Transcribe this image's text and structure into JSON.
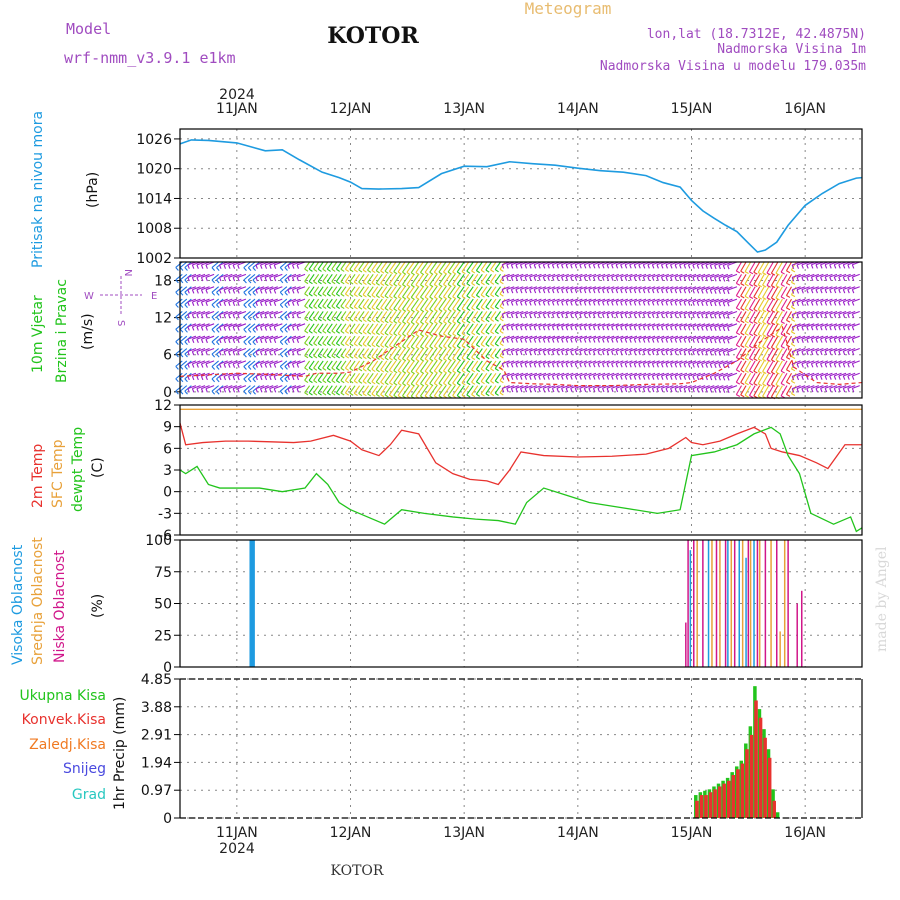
{
  "header": {
    "model_label": "Model",
    "model_name": "wrf-nmm_v3.9.1  e1km",
    "city": "KOTOR",
    "meteogram_label": "Meteogram",
    "lonlat": "lon,lat (18.7312E, 42.4875N)",
    "altitude": "Nadmorska Visina 1m",
    "model_altitude": "Nadmorska Visina u modelu 179.035m",
    "footer_city": "KOTOR",
    "credit": "made by Angel"
  },
  "colors": {
    "pressure": "#1e9be0",
    "temp2m": "#e8322e",
    "sfc_temp": "#e8a13a",
    "dewpoint": "#22c41c",
    "high_cloud": "#1e9be0",
    "mid_cloud": "#e8a13a",
    "low_cloud": "#d0168a",
    "total_precip": "#22c41c",
    "conv_precip": "#e8322e",
    "frozen_precip": "#f07a22",
    "snow": "#4a4adf",
    "graupel": "#28c8c0",
    "wind_purple": "#9a1ec8",
    "grid": "#888888"
  },
  "time_axis": {
    "year": "2024",
    "days": [
      "11JAN",
      "12JAN",
      "13JAN",
      "14JAN",
      "15JAN",
      "16JAN"
    ],
    "start_day": 10.5,
    "end_day": 16.5
  },
  "wind_legend": {
    "n": "N",
    "s": "S",
    "e": "E",
    "w": "W"
  },
  "chart_data": [
    {
      "type": "line",
      "panel": "pressure",
      "ylabel_left": "Pritisak na nivou mora",
      "ylabel_unit": "(hPa)",
      "ylim": [
        1002,
        1028
      ],
      "yticks": [
        "1002",
        "1008",
        "1014",
        "1020",
        "1026"
      ],
      "series": [
        {
          "name": "Pritisak na nivou mora",
          "x": [
            10.5,
            10.6,
            10.75,
            11.0,
            11.25,
            11.4,
            11.55,
            11.75,
            11.9,
            12.0,
            12.1,
            12.25,
            12.45,
            12.6,
            12.8,
            13.0,
            13.2,
            13.4,
            13.6,
            13.8,
            14.0,
            14.2,
            14.4,
            14.6,
            14.75,
            14.9,
            15.0,
            15.1,
            15.2,
            15.3,
            15.4,
            15.5,
            15.58,
            15.65,
            15.75,
            15.85,
            16.0,
            16.15,
            16.3,
            16.45,
            16.5
          ],
          "values": [
            1025.0,
            1025.8,
            1025.7,
            1025.2,
            1023.6,
            1023.8,
            1021.8,
            1019.3,
            1018.2,
            1017.3,
            1016.0,
            1015.9,
            1016.0,
            1016.2,
            1019.0,
            1020.5,
            1020.4,
            1021.4,
            1021.0,
            1020.7,
            1020.1,
            1019.6,
            1019.3,
            1018.6,
            1017.2,
            1016.3,
            1013.6,
            1011.5,
            1010.0,
            1008.6,
            1007.3,
            1005.0,
            1003.2,
            1003.6,
            1005.2,
            1008.6,
            1012.6,
            1015.0,
            1017.0,
            1018.1,
            1018.2
          ]
        }
      ]
    },
    {
      "type": "wind",
      "panel": "wind",
      "ylabel_left": "10m Vjetar",
      "ylabel_left2": "Brzina i Pravac",
      "ylabel_unit": "(m/s)",
      "ylim": [
        -1,
        21
      ],
      "yticks": [
        "0",
        "6",
        "12",
        "18"
      ],
      "barb_levels": [
        1,
        3,
        5,
        7,
        9,
        11,
        13,
        15,
        17,
        19,
        21
      ],
      "series": [
        {
          "name": "speed",
          "x": [
            10.5,
            10.8,
            11.0,
            11.3,
            11.6,
            11.7,
            11.9,
            12.0,
            12.2,
            12.4,
            12.6,
            12.8,
            13.0,
            13.2,
            13.35,
            13.4,
            13.6,
            13.8,
            14.0,
            14.3,
            14.6,
            14.9,
            15.0,
            15.2,
            15.4,
            15.6,
            15.8,
            15.9,
            16.1,
            16.3,
            16.5
          ],
          "values": [
            2.5,
            2.8,
            3.0,
            2.8,
            2.5,
            3.0,
            3.0,
            3.2,
            5.0,
            7.5,
            10.0,
            9.0,
            8.5,
            5.0,
            3.5,
            1.5,
            1.3,
            1.2,
            1.0,
            1.0,
            1.2,
            1.3,
            1.5,
            3.0,
            5.0,
            8.0,
            10.5,
            4.0,
            1.5,
            1.2,
            1.5
          ]
        }
      ]
    },
    {
      "type": "line",
      "panel": "temperature",
      "ylabel_left": "2m Temp",
      "ylabel_left2": "SFC Temp",
      "ylabel_left3": "dewpt Temp",
      "ylabel_unit": "(C)",
      "ylim": [
        -6,
        12
      ],
      "yticks": [
        "-6",
        "-3",
        "0",
        "3",
        "6",
        "9",
        "12"
      ],
      "series": [
        {
          "name": "2m Temp",
          "x": [
            10.5,
            10.55,
            10.7,
            10.9,
            11.1,
            11.3,
            11.5,
            11.65,
            11.85,
            12.0,
            12.1,
            12.25,
            12.35,
            12.45,
            12.6,
            12.75,
            12.9,
            13.05,
            13.2,
            13.3,
            13.4,
            13.5,
            13.7,
            14.0,
            14.3,
            14.6,
            14.8,
            14.95,
            15.0,
            15.1,
            15.25,
            15.4,
            15.55,
            15.65,
            15.7,
            15.8,
            15.95,
            16.1,
            16.2,
            16.35,
            16.5
          ],
          "values": [
            9.5,
            6.5,
            6.8,
            7.0,
            7.0,
            6.9,
            6.8,
            7.0,
            7.8,
            7.0,
            5.8,
            5.0,
            6.5,
            8.5,
            8.0,
            4.0,
            2.5,
            1.7,
            1.5,
            1.0,
            3.0,
            5.5,
            5.0,
            4.8,
            4.9,
            5.2,
            6.0,
            7.5,
            6.8,
            6.5,
            7.0,
            8.0,
            8.9,
            8.0,
            6.0,
            5.5,
            5.0,
            4.0,
            3.2,
            6.5,
            6.5
          ]
        },
        {
          "name": "SFC Temp",
          "x": [
            10.5,
            16.5
          ],
          "values": [
            11.4,
            11.4
          ]
        },
        {
          "name": "dewpt Temp",
          "x": [
            10.5,
            10.55,
            10.65,
            10.75,
            10.85,
            11.0,
            11.2,
            11.4,
            11.6,
            11.7,
            11.8,
            11.9,
            12.0,
            12.15,
            12.3,
            12.45,
            12.65,
            12.9,
            13.1,
            13.3,
            13.45,
            13.55,
            13.7,
            13.9,
            14.1,
            14.3,
            14.5,
            14.7,
            14.9,
            15.0,
            15.2,
            15.4,
            15.55,
            15.7,
            15.78,
            15.85,
            15.95,
            16.05,
            16.25,
            16.4,
            16.45,
            16.5
          ],
          "values": [
            3.0,
            2.5,
            3.5,
            1.0,
            0.5,
            0.5,
            0.5,
            0.0,
            0.5,
            2.5,
            1.0,
            -1.5,
            -2.5,
            -3.5,
            -4.5,
            -2.5,
            -3.0,
            -3.5,
            -3.8,
            -4.0,
            -4.5,
            -1.5,
            0.5,
            -0.5,
            -1.5,
            -2.0,
            -2.5,
            -3.0,
            -2.5,
            5.0,
            5.5,
            6.5,
            8.0,
            8.9,
            8.0,
            5.0,
            2.5,
            -3.0,
            -4.5,
            -3.5,
            -5.5,
            -5.0
          ]
        }
      ]
    },
    {
      "type": "bar",
      "panel": "cloud",
      "ylabel_left": "Visoka Oblacnost",
      "ylabel_left2": "Srednja Oblacnost",
      "ylabel_left3": "Niska Oblacnost",
      "ylabel_unit": "(%)",
      "ylim": [
        0,
        100
      ],
      "yticks": [
        "0",
        "25",
        "50",
        "75",
        "100"
      ],
      "series": [
        {
          "name": "Visoka Oblacnost",
          "x": [
            11.12,
            11.13,
            11.14,
            11.15,
            14.99,
            15.15,
            15.32,
            15.42,
            15.48,
            15.55
          ],
          "values": [
            100,
            100,
            100,
            100,
            92,
            100,
            100,
            100,
            86,
            100
          ]
        },
        {
          "name": "Srednja Oblacnost",
          "x": [
            15.05,
            15.18,
            15.25,
            15.35,
            15.45,
            15.52,
            15.6,
            15.7,
            15.78,
            15.82
          ],
          "values": [
            100,
            100,
            100,
            100,
            100,
            100,
            100,
            100,
            28,
            100
          ]
        },
        {
          "name": "Niska Oblacnost",
          "x": [
            14.95,
            14.97,
            15.02,
            15.1,
            15.22,
            15.3,
            15.38,
            15.5,
            15.58,
            15.65,
            15.75,
            15.85,
            15.93,
            15.97
          ],
          "values": [
            35,
            100,
            100,
            100,
            100,
            100,
            100,
            100,
            100,
            100,
            100,
            100,
            50,
            60
          ]
        }
      ]
    },
    {
      "type": "bar",
      "panel": "precipitation",
      "legend": [
        "Ukupna Kisa",
        "Konvek.Kisa",
        "Zaledj.Kisa",
        "Snijeg",
        "Grad"
      ],
      "ylabel_unit": "1hr Precip (mm)",
      "ylim": [
        0,
        4.85
      ],
      "yticks": [
        "0",
        "0.97",
        "1.94",
        "2.91",
        "3.88",
        "4.85"
      ],
      "series": [
        {
          "name": "Ukupna Kisa",
          "x": [
            15.04,
            15.08,
            15.12,
            15.16,
            15.2,
            15.24,
            15.28,
            15.32,
            15.36,
            15.4,
            15.44,
            15.48,
            15.52,
            15.56,
            15.6,
            15.64,
            15.68,
            15.72,
            15.76
          ],
          "values": [
            0.8,
            0.9,
            0.95,
            1.0,
            1.1,
            1.2,
            1.3,
            1.4,
            1.6,
            1.8,
            2.0,
            2.6,
            3.2,
            4.6,
            3.8,
            3.1,
            2.4,
            1.0,
            0.2
          ]
        },
        {
          "name": "Konvek.Kisa",
          "x": [
            15.05,
            15.09,
            15.13,
            15.17,
            15.21,
            15.25,
            15.29,
            15.33,
            15.37,
            15.41,
            15.45,
            15.49,
            15.53,
            15.57,
            15.61,
            15.65,
            15.69,
            15.73
          ],
          "values": [
            0.6,
            0.8,
            0.8,
            0.9,
            1.0,
            1.1,
            1.2,
            1.3,
            1.5,
            1.7,
            1.9,
            2.4,
            2.9,
            4.1,
            3.5,
            2.8,
            2.1,
            0.6
          ]
        }
      ]
    }
  ]
}
